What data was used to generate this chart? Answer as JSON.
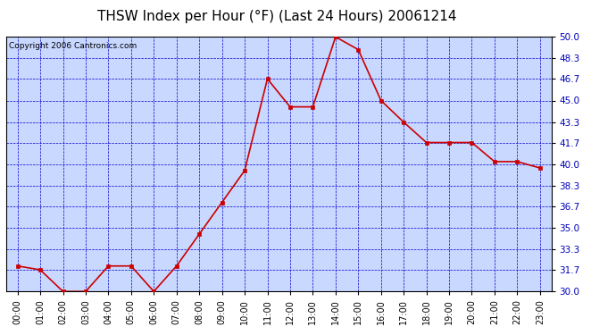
{
  "title": "THSW Index per Hour (°F) (Last 24 Hours) 20061214",
  "copyright": "Copyright 2006 Cantronics.com",
  "hours": [
    "00:00",
    "01:00",
    "02:00",
    "03:00",
    "04:00",
    "05:00",
    "06:00",
    "07:00",
    "08:00",
    "09:00",
    "10:00",
    "11:00",
    "12:00",
    "13:00",
    "14:00",
    "15:00",
    "16:00",
    "17:00",
    "18:00",
    "19:00",
    "20:00",
    "21:00",
    "22:00",
    "23:00"
  ],
  "values": [
    32.0,
    31.7,
    30.0,
    30.0,
    32.0,
    32.0,
    30.0,
    32.0,
    34.5,
    37.0,
    39.5,
    46.7,
    44.5,
    44.5,
    50.0,
    49.0,
    45.0,
    43.3,
    41.7,
    41.7,
    41.7,
    40.2,
    40.2,
    39.7
  ],
  "line_color": "#cc0000",
  "marker_color": "#cc0000",
  "bg_color": "#c8d8ff",
  "outer_bg": "#ffffff",
  "grid_color": "#0000cc",
  "axis_label_color": "#0000cc",
  "ytick_label_color": "#0000bb",
  "ylim": [
    30.0,
    50.0
  ],
  "yticks": [
    30.0,
    31.7,
    33.3,
    35.0,
    36.7,
    38.3,
    40.0,
    41.7,
    43.3,
    45.0,
    46.7,
    48.3,
    50.0
  ],
  "title_color": "#000000",
  "title_fontsize": 11,
  "copyright_fontsize": 6.5,
  "tick_fontsize": 7.5,
  "xtick_fontsize": 7
}
